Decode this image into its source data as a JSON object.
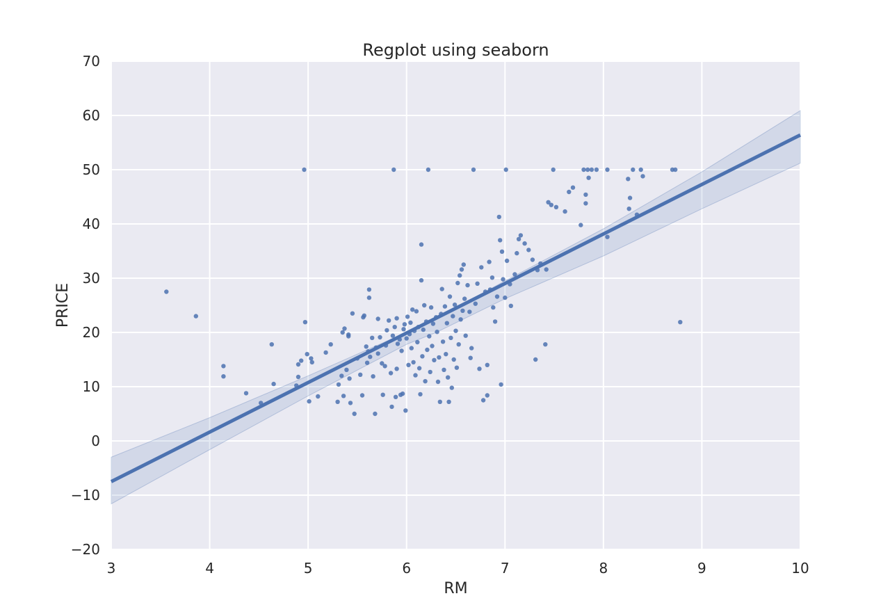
{
  "chart_data": {
    "type": "scatter",
    "title": "Regplot using seaborn",
    "xlabel": "RM",
    "ylabel": "PRICE",
    "xlim": [
      3,
      10
    ],
    "ylim": [
      -20,
      70
    ],
    "xticks": [
      3,
      4,
      5,
      6,
      7,
      8,
      9,
      10
    ],
    "yticks": [
      -20,
      -10,
      0,
      10,
      20,
      30,
      40,
      50,
      60,
      70
    ],
    "xtick_labels": [
      "3",
      "4",
      "5",
      "6",
      "7",
      "8",
      "9",
      "10"
    ],
    "ytick_labels": [
      "−20",
      "−10",
      "0",
      "10",
      "20",
      "30",
      "40",
      "50",
      "60",
      "70"
    ],
    "grid": true,
    "colors": {
      "background": "#eaeaf2",
      "grid": "#ffffff",
      "point": "#4c72b0",
      "line": "#4c72b0",
      "band": "#4c72b0"
    },
    "regression": {
      "x": [
        3,
        10
      ],
      "y": [
        -7.5,
        56.4
      ],
      "ci_x": [
        3,
        4,
        5,
        6,
        6.3,
        7,
        8,
        9,
        10
      ],
      "ci_upper": [
        -3.0,
        4.3,
        12.0,
        20.0,
        22.6,
        29.5,
        39.1,
        49.6,
        60.9
      ],
      "ci_lower": [
        -11.6,
        -1.6,
        8.3,
        17.8,
        20.0,
        26.2,
        34.1,
        42.8,
        51.2
      ]
    },
    "points": [
      [
        3.56,
        27.5
      ],
      [
        3.86,
        23.0
      ],
      [
        4.14,
        13.8
      ],
      [
        4.14,
        11.9
      ],
      [
        4.37,
        8.8
      ],
      [
        4.52,
        7.0
      ],
      [
        4.63,
        17.8
      ],
      [
        4.65,
        10.5
      ],
      [
        4.88,
        10.2
      ],
      [
        4.9,
        11.8
      ],
      [
        4.9,
        14.1
      ],
      [
        4.93,
        14.8
      ],
      [
        4.96,
        50.0
      ],
      [
        4.97,
        21.9
      ],
      [
        4.99,
        16.0
      ],
      [
        5.01,
        7.3
      ],
      [
        5.03,
        15.2
      ],
      [
        5.04,
        14.5
      ],
      [
        5.1,
        8.2
      ],
      [
        5.18,
        16.3
      ],
      [
        5.23,
        17.8
      ],
      [
        5.3,
        7.2
      ],
      [
        5.31,
        10.4
      ],
      [
        5.34,
        12.0
      ],
      [
        5.35,
        20.0
      ],
      [
        5.36,
        8.3
      ],
      [
        5.37,
        20.7
      ],
      [
        5.39,
        13.1
      ],
      [
        5.41,
        19.6
      ],
      [
        5.41,
        19.3
      ],
      [
        5.42,
        11.5
      ],
      [
        5.43,
        7.0
      ],
      [
        5.45,
        23.5
      ],
      [
        5.47,
        5.0
      ],
      [
        5.5,
        15.2
      ],
      [
        5.53,
        12.2
      ],
      [
        5.55,
        8.4
      ],
      [
        5.56,
        22.8
      ],
      [
        5.57,
        23.1
      ],
      [
        5.59,
        17.4
      ],
      [
        5.6,
        14.4
      ],
      [
        5.61,
        16.5
      ],
      [
        5.62,
        26.4
      ],
      [
        5.62,
        27.9
      ],
      [
        5.63,
        15.5
      ],
      [
        5.65,
        19.0
      ],
      [
        5.66,
        11.9
      ],
      [
        5.68,
        5.0
      ],
      [
        5.69,
        17.2
      ],
      [
        5.71,
        16.1
      ],
      [
        5.71,
        22.5
      ],
      [
        5.73,
        19.1
      ],
      [
        5.75,
        14.3
      ],
      [
        5.76,
        8.5
      ],
      [
        5.78,
        13.8
      ],
      [
        5.79,
        17.6
      ],
      [
        5.8,
        20.4
      ],
      [
        5.82,
        22.2
      ],
      [
        5.84,
        12.5
      ],
      [
        5.85,
        6.3
      ],
      [
        5.86,
        19.4
      ],
      [
        5.87,
        50.0
      ],
      [
        5.88,
        21.0
      ],
      [
        5.89,
        8.1
      ],
      [
        5.9,
        13.3
      ],
      [
        5.9,
        22.6
      ],
      [
        5.91,
        17.9
      ],
      [
        5.93,
        18.7
      ],
      [
        5.94,
        8.5
      ],
      [
        5.95,
        16.6
      ],
      [
        5.96,
        8.7
      ],
      [
        5.97,
        20.6
      ],
      [
        5.98,
        21.5
      ],
      [
        5.99,
        5.6
      ],
      [
        6.0,
        18.9
      ],
      [
        6.01,
        22.9
      ],
      [
        6.02,
        14.0
      ],
      [
        6.03,
        19.7
      ],
      [
        6.04,
        21.8
      ],
      [
        6.05,
        17.1
      ],
      [
        6.06,
        24.2
      ],
      [
        6.07,
        14.5
      ],
      [
        6.08,
        20.3
      ],
      [
        6.09,
        12.1
      ],
      [
        6.1,
        23.9
      ],
      [
        6.11,
        18.2
      ],
      [
        6.12,
        21.0
      ],
      [
        6.13,
        13.4
      ],
      [
        6.14,
        8.6
      ],
      [
        6.15,
        36.2
      ],
      [
        6.15,
        29.6
      ],
      [
        6.16,
        15.6
      ],
      [
        6.17,
        20.5
      ],
      [
        6.18,
        25.0
      ],
      [
        6.19,
        11.0
      ],
      [
        6.2,
        22.0
      ],
      [
        6.21,
        16.8
      ],
      [
        6.22,
        50.0
      ],
      [
        6.23,
        19.3
      ],
      [
        6.24,
        12.7
      ],
      [
        6.25,
        24.6
      ],
      [
        6.26,
        17.5
      ],
      [
        6.27,
        21.6
      ],
      [
        6.28,
        14.9
      ],
      [
        6.3,
        22.8
      ],
      [
        6.31,
        20.1
      ],
      [
        6.32,
        10.9
      ],
      [
        6.33,
        15.4
      ],
      [
        6.34,
        7.2
      ],
      [
        6.35,
        23.4
      ],
      [
        6.36,
        28.0
      ],
      [
        6.37,
        18.3
      ],
      [
        6.38,
        13.1
      ],
      [
        6.39,
        24.8
      ],
      [
        6.4,
        16.0
      ],
      [
        6.41,
        21.7
      ],
      [
        6.42,
        11.7
      ],
      [
        6.43,
        7.2
      ],
      [
        6.44,
        26.6
      ],
      [
        6.45,
        19.0
      ],
      [
        6.46,
        9.8
      ],
      [
        6.47,
        23.0
      ],
      [
        6.48,
        15.0
      ],
      [
        6.49,
        25.1
      ],
      [
        6.5,
        20.3
      ],
      [
        6.51,
        13.5
      ],
      [
        6.52,
        29.1
      ],
      [
        6.53,
        17.8
      ],
      [
        6.54,
        30.5
      ],
      [
        6.55,
        22.4
      ],
      [
        6.56,
        31.6
      ],
      [
        6.57,
        24.0
      ],
      [
        6.58,
        32.5
      ],
      [
        6.59,
        26.2
      ],
      [
        6.6,
        19.4
      ],
      [
        6.62,
        28.7
      ],
      [
        6.64,
        23.8
      ],
      [
        6.65,
        15.3
      ],
      [
        6.66,
        17.1
      ],
      [
        6.68,
        50.0
      ],
      [
        6.7,
        25.3
      ],
      [
        6.72,
        29.0
      ],
      [
        6.74,
        13.3
      ],
      [
        6.76,
        32.0
      ],
      [
        6.78,
        7.5
      ],
      [
        6.8,
        27.5
      ],
      [
        6.82,
        8.4
      ],
      [
        6.82,
        14.0
      ],
      [
        6.84,
        33.0
      ],
      [
        6.85,
        27.9
      ],
      [
        6.87,
        30.1
      ],
      [
        6.88,
        24.6
      ],
      [
        6.9,
        22.0
      ],
      [
        6.92,
        26.6
      ],
      [
        6.94,
        41.3
      ],
      [
        6.95,
        37.0
      ],
      [
        6.96,
        10.4
      ],
      [
        6.97,
        34.9
      ],
      [
        6.98,
        29.8
      ],
      [
        7.0,
        26.4
      ],
      [
        7.01,
        50.0
      ],
      [
        7.02,
        33.2
      ],
      [
        7.05,
        28.9
      ],
      [
        7.06,
        24.9
      ],
      [
        7.1,
        30.7
      ],
      [
        7.12,
        34.6
      ],
      [
        7.14,
        37.2
      ],
      [
        7.16,
        37.9
      ],
      [
        7.2,
        36.4
      ],
      [
        7.24,
        35.2
      ],
      [
        7.28,
        33.4
      ],
      [
        7.31,
        15.0
      ],
      [
        7.33,
        31.5
      ],
      [
        7.36,
        32.7
      ],
      [
        7.41,
        17.8
      ],
      [
        7.42,
        31.6
      ],
      [
        7.44,
        44.0
      ],
      [
        7.47,
        43.5
      ],
      [
        7.49,
        50.0
      ],
      [
        7.52,
        43.1
      ],
      [
        7.61,
        42.3
      ],
      [
        7.65,
        45.9
      ],
      [
        7.69,
        46.7
      ],
      [
        7.77,
        39.8
      ],
      [
        7.8,
        50.0
      ],
      [
        7.82,
        43.8
      ],
      [
        7.82,
        45.4
      ],
      [
        7.84,
        50.0
      ],
      [
        7.85,
        48.5
      ],
      [
        7.88,
        50.0
      ],
      [
        7.93,
        50.0
      ],
      [
        8.04,
        50.0
      ],
      [
        8.04,
        37.6
      ],
      [
        8.25,
        48.3
      ],
      [
        8.26,
        42.8
      ],
      [
        8.27,
        44.8
      ],
      [
        8.3,
        50.0
      ],
      [
        8.34,
        41.7
      ],
      [
        8.38,
        50.0
      ],
      [
        8.4,
        48.8
      ],
      [
        8.7,
        50.0
      ],
      [
        8.73,
        50.0
      ],
      [
        8.78,
        21.9
      ]
    ]
  }
}
